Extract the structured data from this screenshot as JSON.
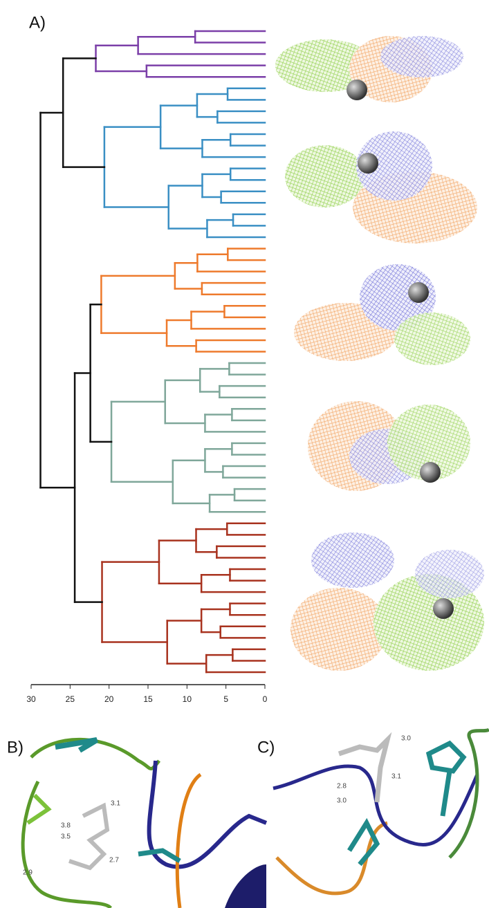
{
  "chart_data": {
    "type": "dendrogram",
    "panel_label": "A)",
    "xlim": [
      30,
      0
    ],
    "xticks": [
      30,
      25,
      20,
      15,
      10,
      5,
      0
    ],
    "clusters": [
      {
        "color": "#7b3fa8",
        "leaves": 5,
        "height": 21.7
      },
      {
        "color": "#3a8fc4",
        "leaves": 14,
        "height": 20.6
      },
      {
        "color": "#ee7a2c",
        "leaves": 10,
        "height": 21.0
      },
      {
        "color": "#7fa79a",
        "leaves": 14,
        "height": 19.7
      },
      {
        "color": "#a8321e",
        "leaves": 14,
        "height": 20.9
      }
    ],
    "merges": [
      {
        "children": [
          0,
          1
        ],
        "height": 25.9
      },
      {
        "children": [
          2,
          3
        ],
        "height": 22.4
      },
      {
        "children": [
          6,
          4
        ],
        "height": 24.4
      },
      {
        "children": [
          5,
          7
        ],
        "height": 28.8
      }
    ],
    "link_color": "#111111"
  },
  "panel_b": {
    "label": "B)",
    "distances": [
      "3.1",
      "3.8",
      "3.5",
      "2.9",
      "2.7"
    ]
  },
  "panel_c": {
    "label": "C)",
    "distances": [
      "3.0",
      "3.1",
      "2.8",
      "3.0"
    ]
  }
}
